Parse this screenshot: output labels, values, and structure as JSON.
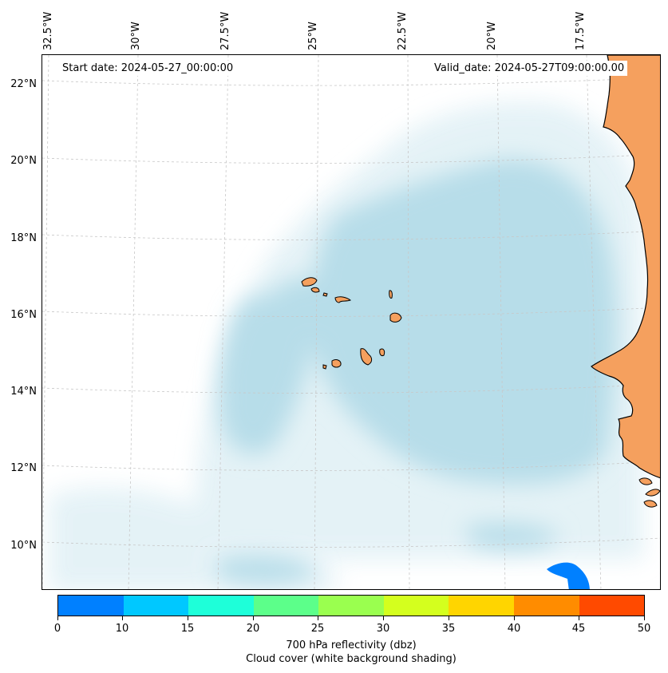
{
  "map": {
    "start_date": "Start date: 2024-05-27_00:00:00",
    "valid_date": "Valid_date: 2024-05-27T09:00:00.00",
    "lon_labels": [
      "32.5°W",
      "30°W",
      "27.5°W",
      "25°W",
      "22.5°W",
      "20°W",
      "17.5°W"
    ],
    "lat_labels": [
      "22°N",
      "20°N",
      "18°N",
      "16°N",
      "14°N",
      "12°N",
      "10°N"
    ],
    "colors": {
      "land": "#f5a05e",
      "cloud": "#b7dde9",
      "coastline": "#000000",
      "grid": "#c8c8c8"
    }
  },
  "colorbar": {
    "ticks": [
      "0",
      "10",
      "15",
      "20",
      "25",
      "30",
      "35",
      "40",
      "45",
      "50"
    ],
    "colors": [
      "#0080ff",
      "#00c8ff",
      "#1effd9",
      "#5cff8a",
      "#9aff4f",
      "#d4ff1e",
      "#ffd500",
      "#ff8c00",
      "#ff4a00"
    ],
    "label": "700 hPa reflectivity (dbz)",
    "sublabel": "Cloud cover (white background shading)"
  }
}
